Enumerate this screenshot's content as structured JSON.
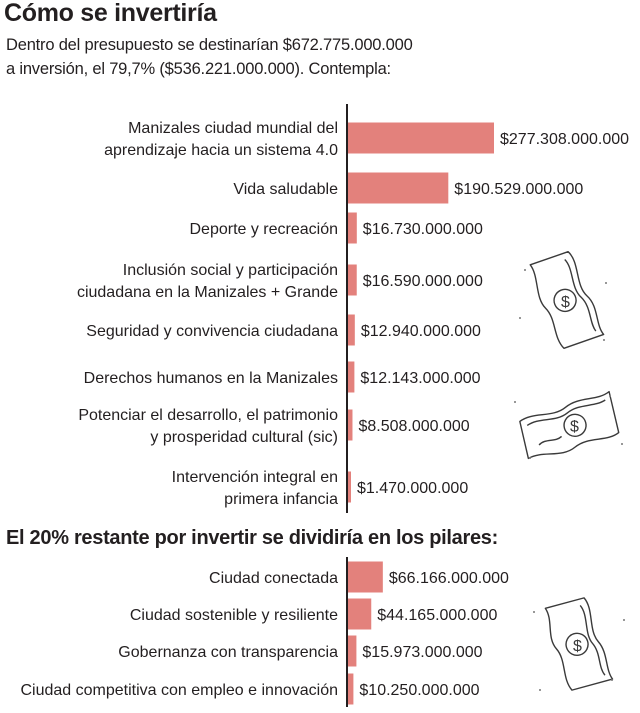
{
  "header": {
    "title": "Cómo se invertiría",
    "intro_lines": [
      "Dentro del presupuesto se destinarían $672.775.000.000",
      "a inversión, el 79,7% ($536.221.000.000). Contempla:"
    ]
  },
  "section2": {
    "title": "El 20% restante por invertir se dividiría en los pilares:"
  },
  "colors": {
    "bar": "#e3817c",
    "text": "#231f20"
  },
  "icons": [
    "money-bill-icon",
    "money-bill-icon",
    "money-bill-icon"
  ],
  "chart_data": [
    {
      "type": "bar",
      "orientation": "horizontal",
      "categories": [
        [
          "Manizales ciudad mundial del",
          "aprendizaje hacia un sistema 4.0"
        ],
        [
          "Vida saludable"
        ],
        [
          "Deporte y recreación"
        ],
        [
          "Inclusión social y participación",
          "ciudadana en la Manizales + Grande"
        ],
        [
          "Seguridad y convivencia ciudadana"
        ],
        [
          "Derechos humanos en la Manizales"
        ],
        [
          "Potenciar el desarrollo, el patrimonio",
          "y prosperidad cultural (sic)"
        ],
        [
          "Intervención integral en",
          "primera infancia"
        ]
      ],
      "values": [
        277308000000,
        190529000000,
        16730000000,
        16590000000,
        12940000000,
        12143000000,
        8508000000,
        1470000000
      ],
      "value_labels": [
        "$277.308.000.000",
        "$190.529.000.000",
        "$16.730.000.000",
        "$16.590.000.000",
        "$12.940.000.000",
        "$12.143.000.000",
        "$8.508.000.000",
        "$1.470.000.000"
      ]
    },
    {
      "type": "bar",
      "orientation": "horizontal",
      "categories": [
        [
          "Ciudad conectada"
        ],
        [
          "Ciudad sostenible y resiliente"
        ],
        [
          "Gobernanza con transparencia"
        ],
        [
          "Ciudad competitiva con empleo e innovación"
        ]
      ],
      "values": [
        66166000000,
        44165000000,
        15973000000,
        10250000000
      ],
      "value_labels": [
        "$66.166.000.000",
        "$44.165.000.000",
        "$15.973.000.000",
        "$10.250.000.000"
      ]
    }
  ]
}
